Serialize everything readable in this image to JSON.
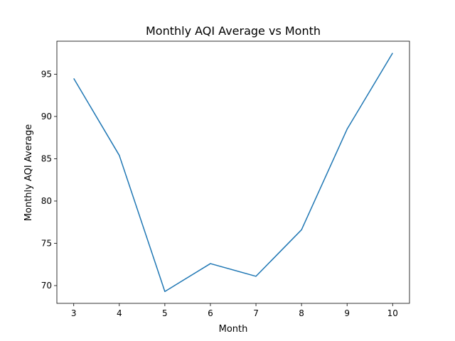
{
  "chart_data": {
    "type": "line",
    "title": "Monthly AQI Average vs Month",
    "xlabel": "Month",
    "ylabel": "Monthly AQI Average",
    "x": [
      3,
      4,
      5,
      6,
      7,
      8,
      9,
      10
    ],
    "series": [
      {
        "values": [
          94.5,
          85.4,
          69.3,
          72.6,
          71.1,
          76.6,
          88.5,
          97.5
        ],
        "color": "#1f77b4"
      }
    ],
    "xlim": [
      2.63,
      10.37
    ],
    "ylim": [
      67.9,
      98.9
    ],
    "xticks": [
      "3",
      "4",
      "5",
      "6",
      "7",
      "8",
      "9",
      "10"
    ],
    "yticks": [
      "70",
      "75",
      "80",
      "85",
      "90",
      "95"
    ],
    "grid": false,
    "legend": "none"
  }
}
